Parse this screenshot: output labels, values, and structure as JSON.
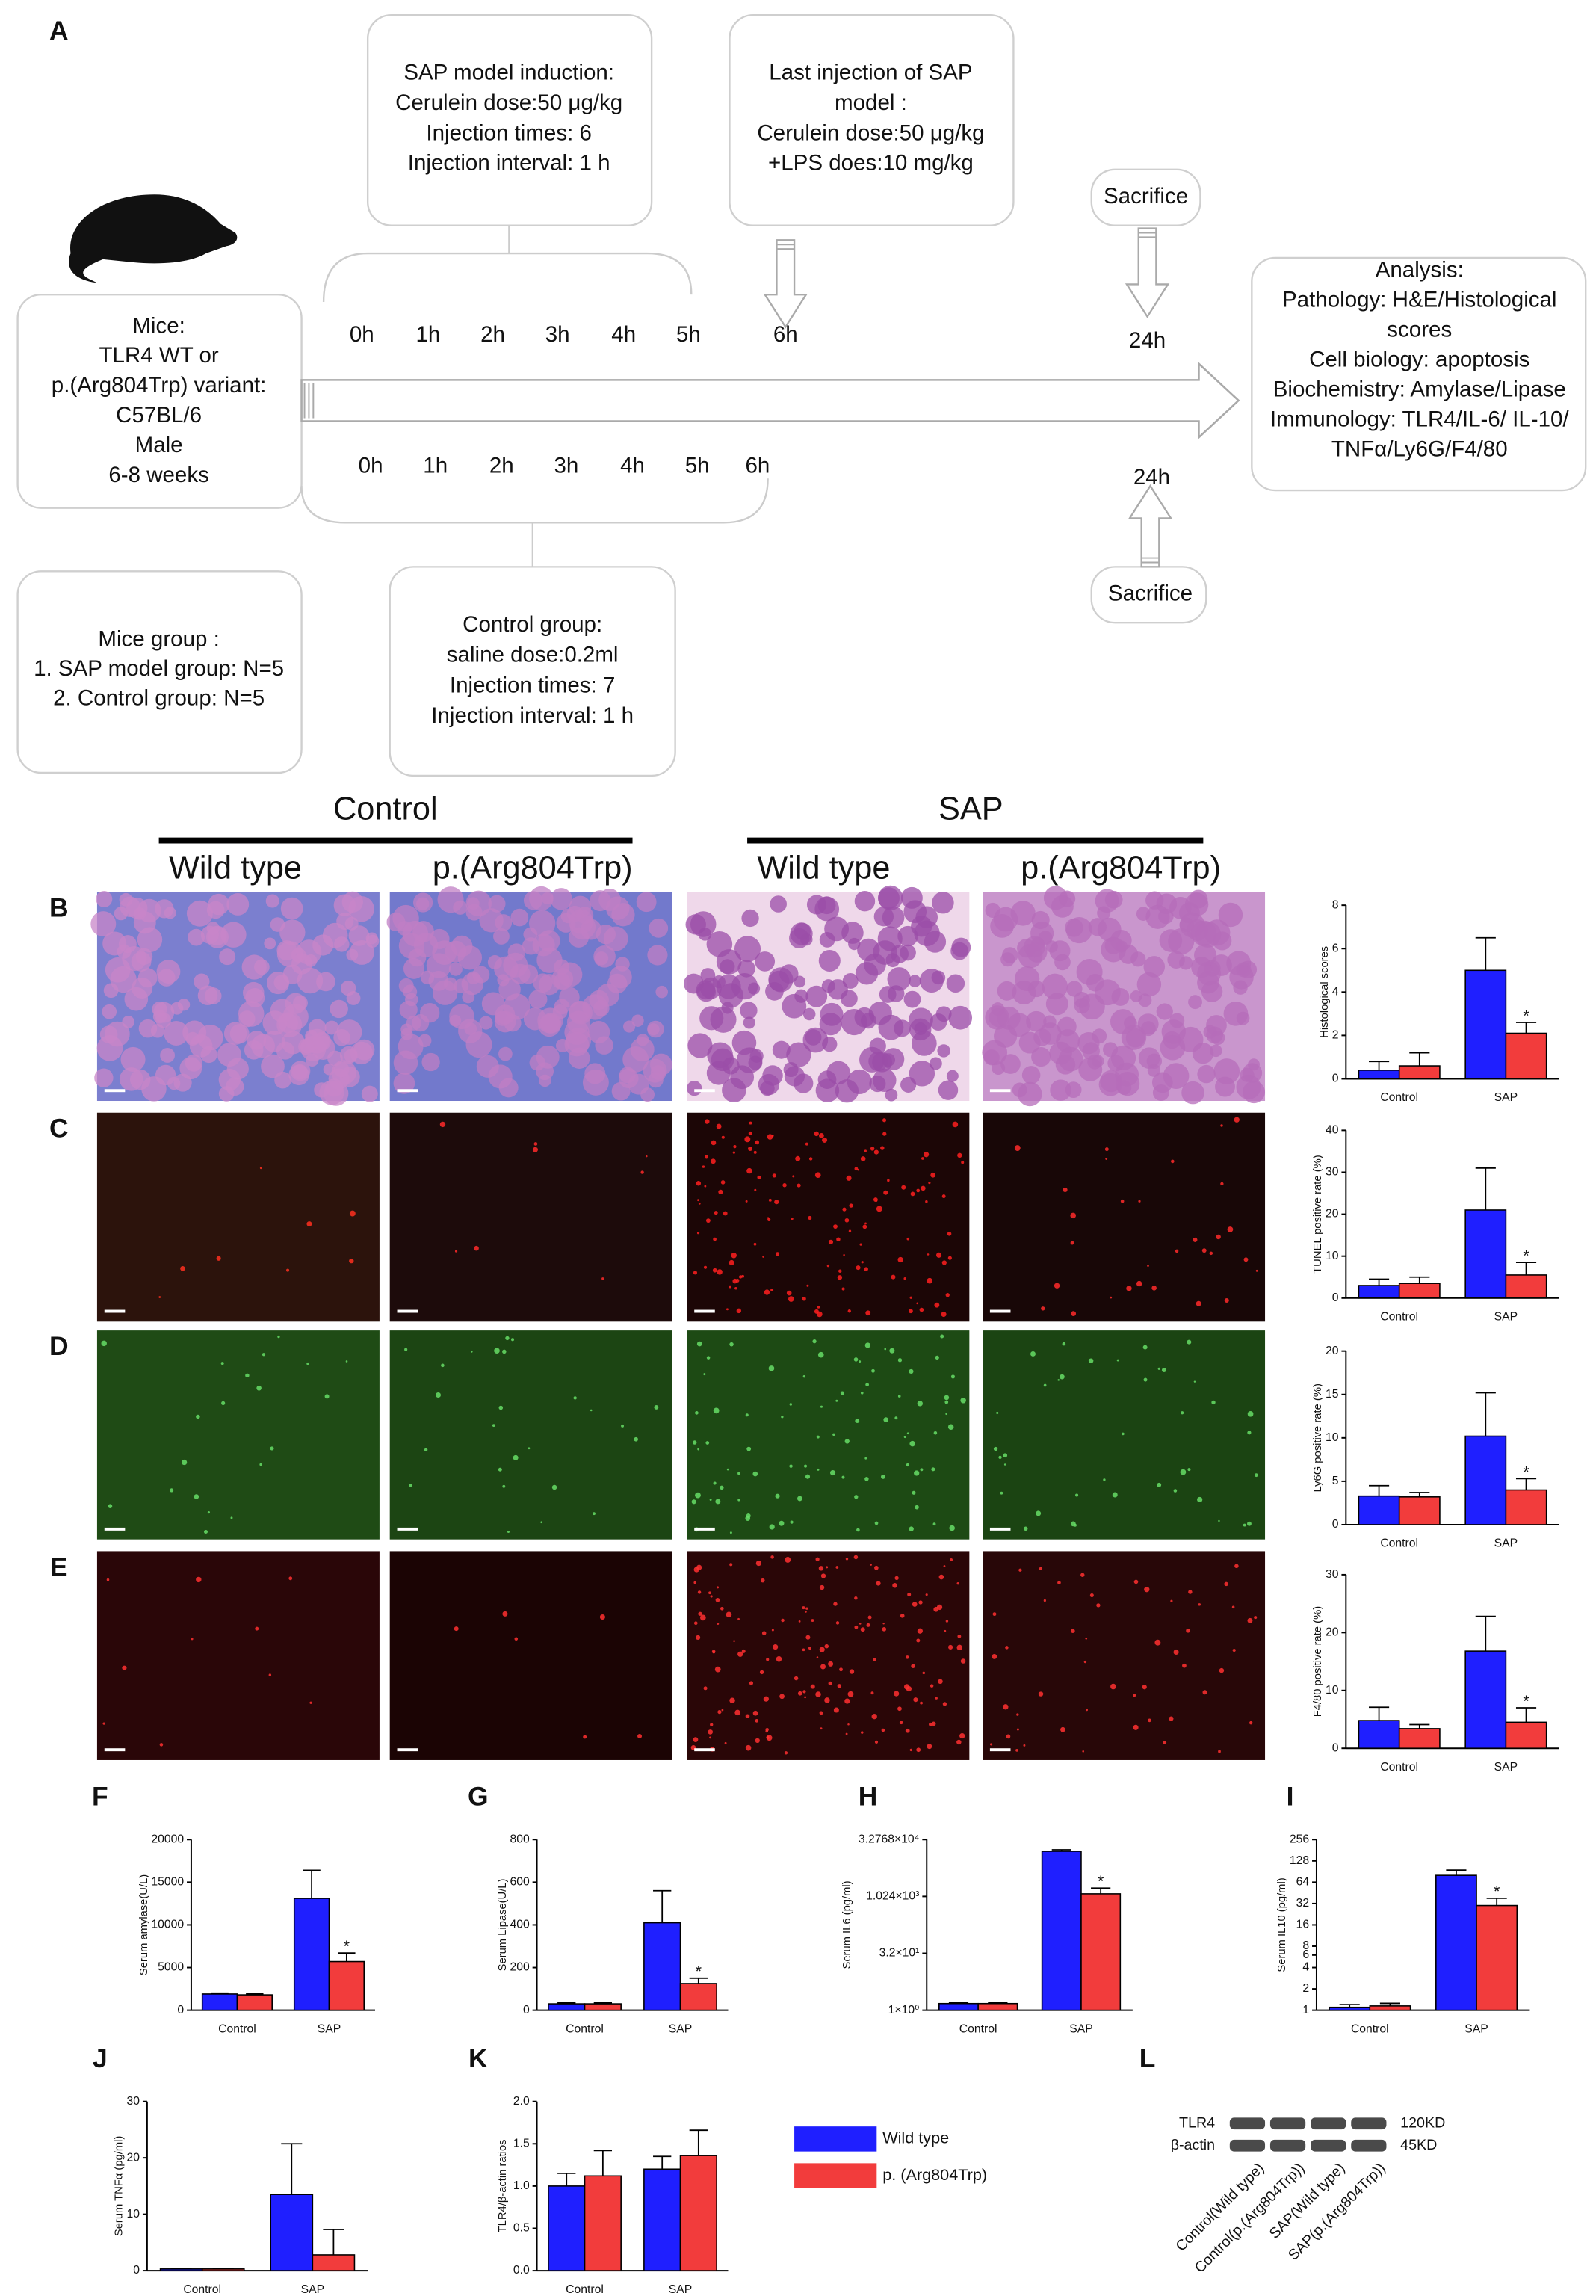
{
  "diagram": {
    "panel": "A",
    "mice_box": [
      "Mice:",
      "TLR4 WT or",
      "p.(Arg804Trp) variant:",
      "C57BL/6",
      "Male",
      "6-8 weeks"
    ],
    "sap_induction_box": [
      "SAP model induction:",
      "Cerulein dose:50 μg/kg",
      "Injection times: 6",
      "Injection interval: 1 h"
    ],
    "last_injection_box": [
      "Last injection of SAP",
      "model :",
      "Cerulein dose:50 μg/kg",
      "+LPS does:10 mg/kg"
    ],
    "sacrifice_top": "Sacrifice",
    "sacrifice_bottom": "Sacrifice",
    "analysis_box": [
      "Analysis:",
      "Pathology: H&E/Histological",
      "scores",
      "Cell biology: apoptosis",
      "Biochemistry: Amylase/Lipase",
      "Immunology: TLR4/IL-6/ IL-10/",
      "TNFα/Ly6G/F4/80"
    ],
    "mice_group_box": [
      "Mice group :",
      "1. SAP model group: N=5",
      "2. Control group: N=5"
    ],
    "control_group_box": [
      "Control group:",
      "saline dose:0.2ml",
      "Injection times: 7",
      "Injection interval: 1 h"
    ],
    "timeline_top": [
      "0h",
      "1h",
      "2h",
      "3h",
      "4h",
      "5h",
      "6h"
    ],
    "timeline_top_end": "24h",
    "timeline_bottom": [
      "0h",
      "1h",
      "2h",
      "3h",
      "4h",
      "5h",
      "6h"
    ],
    "timeline_bottom_end": "24h"
  },
  "micrographs": {
    "groups": [
      "Control",
      "SAP"
    ],
    "genotypes": [
      "Wild type",
      "p.(Arg804Trp)",
      "Wild type",
      "p.(Arg804Trp)"
    ],
    "rows": [
      "B",
      "C",
      "D",
      "E"
    ]
  },
  "chart_data": [
    {
      "type": "bar",
      "ylabel": "Histological scores",
      "categories": [
        "Control",
        "SAP"
      ],
      "series": [
        {
          "color": "#1f1fff",
          "values": [
            0.4,
            5.0
          ],
          "errors": [
            0.4,
            1.5
          ]
        },
        {
          "color": "#f23c3c",
          "values": [
            0.6,
            2.1
          ],
          "errors": [
            0.6,
            0.5
          ]
        }
      ],
      "ylim": [
        0,
        8
      ],
      "yticks": [
        0,
        2,
        4,
        6,
        8
      ],
      "star": "*"
    },
    {
      "type": "bar",
      "ylabel": "TUNEL positive rate (%)",
      "categories": [
        "Control",
        "SAP"
      ],
      "series": [
        {
          "color": "#1f1fff",
          "values": [
            3,
            21
          ],
          "errors": [
            1.5,
            10
          ]
        },
        {
          "color": "#f23c3c",
          "values": [
            3.5,
            5.5
          ],
          "errors": [
            1.5,
            3
          ]
        }
      ],
      "ylim": [
        0,
        40
      ],
      "yticks": [
        0,
        10,
        20,
        30,
        40
      ],
      "star": "*"
    },
    {
      "type": "bar",
      "ylabel": "Ly6G positive rate (%)",
      "categories": [
        "Control",
        "SAP"
      ],
      "series": [
        {
          "color": "#1f1fff",
          "values": [
            3.3,
            10.2
          ],
          "errors": [
            1.2,
            5
          ]
        },
        {
          "color": "#f23c3c",
          "values": [
            3.2,
            4
          ],
          "errors": [
            0.5,
            1.3
          ]
        }
      ],
      "ylim": [
        0,
        20
      ],
      "yticks": [
        0,
        5,
        10,
        15,
        20
      ],
      "star": "*"
    },
    {
      "type": "bar",
      "ylabel": "F4/80 positive rate (%)",
      "categories": [
        "Control",
        "SAP"
      ],
      "series": [
        {
          "color": "#1f1fff",
          "values": [
            4.8,
            16.8
          ],
          "errors": [
            2.3,
            6
          ]
        },
        {
          "color": "#f23c3c",
          "values": [
            3.4,
            4.5
          ],
          "errors": [
            0.7,
            2.5
          ]
        }
      ],
      "ylim": [
        0,
        30
      ],
      "yticks": [
        0,
        10,
        20,
        30
      ],
      "star": "*"
    },
    {
      "type": "bar",
      "panel": "F",
      "ylabel": "Serum amylase(U/L)",
      "categories": [
        "Control",
        "SAP"
      ],
      "series": [
        {
          "color": "#1f1fff",
          "values": [
            1900,
            13100
          ],
          "errors": [
            100,
            3300
          ]
        },
        {
          "color": "#f23c3c",
          "values": [
            1800,
            5700
          ],
          "errors": [
            100,
            1000
          ]
        }
      ],
      "ylim": [
        0,
        20000
      ],
      "yticks": [
        0,
        5000,
        10000,
        15000,
        20000
      ],
      "star": "*"
    },
    {
      "type": "bar",
      "panel": "G",
      "ylabel": "Serum Lipase(U/L)",
      "categories": [
        "Control",
        "SAP"
      ],
      "series": [
        {
          "color": "#1f1fff",
          "values": [
            30,
            410
          ],
          "errors": [
            5,
            150
          ]
        },
        {
          "color": "#f23c3c",
          "values": [
            30,
            125
          ],
          "errors": [
            5,
            25
          ]
        }
      ],
      "ylim": [
        0,
        800
      ],
      "yticks": [
        0,
        200,
        400,
        600,
        800
      ],
      "star": "*"
    },
    {
      "type": "bar",
      "panel": "H",
      "ylabel": "Serum IL6 (pg/ml)",
      "categories": [
        "Control",
        "SAP"
      ],
      "log": true,
      "series": [
        {
          "color": "#1f1fff",
          "values": [
            1.5,
            16000
          ],
          "errors": [
            0.1,
            1500
          ]
        },
        {
          "color": "#f23c3c",
          "values": [
            1.5,
            1200
          ],
          "errors": [
            0.1,
            500
          ]
        }
      ],
      "ylim": [
        1,
        32768
      ],
      "yticks": [
        {
          "value": 1,
          "label": "1×10⁰"
        },
        {
          "value": 32,
          "label": "3.2×10¹"
        },
        {
          "value": 1024,
          "label": "1.024×10³"
        },
        {
          "value": 32768,
          "label": "3.2768×10⁴"
        }
      ],
      "star": "*"
    },
    {
      "type": "bar",
      "panel": "I",
      "ylabel": "Serum IL10 (pg/ml)",
      "categories": [
        "Control",
        "SAP"
      ],
      "log": true,
      "series": [
        {
          "color": "#1f1fff",
          "values": [
            1.1,
            80
          ],
          "errors": [
            0.1,
            15
          ]
        },
        {
          "color": "#f23c3c",
          "values": [
            1.15,
            30
          ],
          "errors": [
            0.1,
            8
          ]
        }
      ],
      "ylim": [
        1,
        256
      ],
      "yticks": [
        1,
        2,
        4,
        6,
        8,
        16,
        32,
        64,
        128,
        256
      ],
      "star": "*"
    },
    {
      "type": "bar",
      "panel": "J",
      "ylabel": "Serum TNFα (pg/ml)",
      "categories": [
        "Control",
        "SAP"
      ],
      "series": [
        {
          "color": "#1f1fff",
          "values": [
            0.3,
            13.5
          ],
          "errors": [
            0.1,
            9
          ]
        },
        {
          "color": "#f23c3c",
          "values": [
            0.3,
            2.8
          ],
          "errors": [
            0.1,
            4.5
          ]
        }
      ],
      "ylim": [
        0,
        30
      ],
      "yticks": [
        0,
        10,
        20,
        30
      ]
    },
    {
      "type": "bar",
      "panel": "K",
      "ylabel": "TLR4/β-actin ratios",
      "categories": [
        "Control",
        "SAP"
      ],
      "series": [
        {
          "color": "#1f1fff",
          "values": [
            1.0,
            1.2
          ],
          "errors": [
            0.15,
            0.15
          ]
        },
        {
          "color": "#f23c3c",
          "values": [
            1.12,
            1.36
          ],
          "errors": [
            0.3,
            0.3
          ]
        }
      ],
      "ylim": [
        0,
        2
      ],
      "yticks": [
        {
          "value": 0,
          "label": "0.0"
        },
        {
          "value": 0.5,
          "label": "0.5"
        },
        {
          "value": 1,
          "label": "1.0"
        },
        {
          "value": 1.5,
          "label": "1.5"
        },
        {
          "value": 2,
          "label": "2.0"
        }
      ]
    }
  ],
  "legend": [
    {
      "name": "Wild type",
      "color": "#1f1fff"
    },
    {
      "name": "p. (Arg804Trp)",
      "color": "#f23c3c"
    }
  ],
  "western_blot": {
    "panel": "L",
    "bands": [
      "TLR4",
      "β-actin"
    ],
    "sizes": [
      "120KD",
      "45KD"
    ],
    "lanes": [
      "Control(Wild type)",
      "Control(p.(Arg804Trp))",
      "SAP(Wild type)",
      "SAP(p.(Arg804Trp))"
    ]
  }
}
